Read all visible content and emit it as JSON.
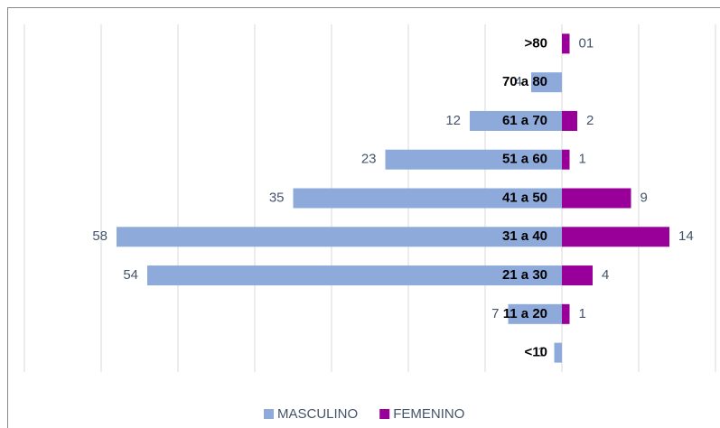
{
  "chart_data": {
    "type": "pyramid",
    "categories": [
      ">80",
      "70 a 80",
      "61 a 70",
      "51 a 60",
      "41 a 50",
      "31 a 40",
      "21 a 30",
      "11 a 20",
      "<10"
    ],
    "series": [
      {
        "name": "MASCULINO",
        "color": "#8eaadb",
        "side": "left",
        "values": [
          null,
          4,
          12,
          23,
          35,
          58,
          54,
          7,
          1
        ]
      },
      {
        "name": "FEMENINO",
        "color": "#990099",
        "side": "right",
        "values": [
          1,
          null,
          2,
          1,
          9,
          14,
          4,
          1,
          null
        ],
        "value_labels": [
          "01",
          null,
          "2",
          "1",
          "9",
          "14",
          "4",
          "1",
          null
        ]
      }
    ],
    "xlim": [
      -70,
      20
    ],
    "xticks": [
      -70,
      -60,
      -50,
      -40,
      -30,
      -20,
      -10,
      0,
      10,
      20
    ],
    "grid": true,
    "legend": "bottom"
  }
}
